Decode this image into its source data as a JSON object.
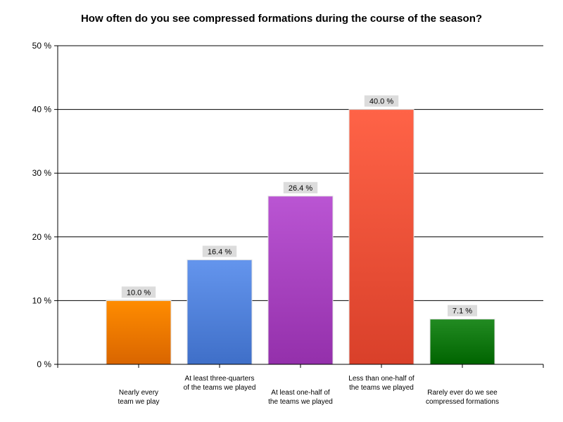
{
  "chart_data": {
    "type": "bar",
    "title": "How often do you see compressed formations during the course of the season?",
    "xlabel": "",
    "ylabel": "",
    "ylim": [
      0,
      50
    ],
    "yticks": [
      "0 %",
      "10 %",
      "20 %",
      "30 %",
      "40 %",
      "50 %"
    ],
    "grid": true,
    "categories": [
      [
        "Nearly every",
        "team we play"
      ],
      [
        "At least three-quarters",
        "of the teams we played"
      ],
      [
        "At least one-half of",
        "the teams we played"
      ],
      [
        "Less than one-half of",
        "the teams we played"
      ],
      [
        "Rarely ever do we see",
        "compressed formations"
      ]
    ],
    "values": [
      10.0,
      16.4,
      26.4,
      40.0,
      7.1
    ],
    "data_labels": [
      "10.0 %",
      "16.4 %",
      "26.4 %",
      "40.0 %",
      "7.1 %"
    ],
    "colors": [
      [
        "#ff8c00",
        "#d96500"
      ],
      [
        "#6495ed",
        "#3f6fc8"
      ],
      [
        "#ba55d3",
        "#9430ab"
      ],
      [
        "#ff6347",
        "#d9402a"
      ],
      [
        "#228b22",
        "#006400"
      ]
    ]
  }
}
